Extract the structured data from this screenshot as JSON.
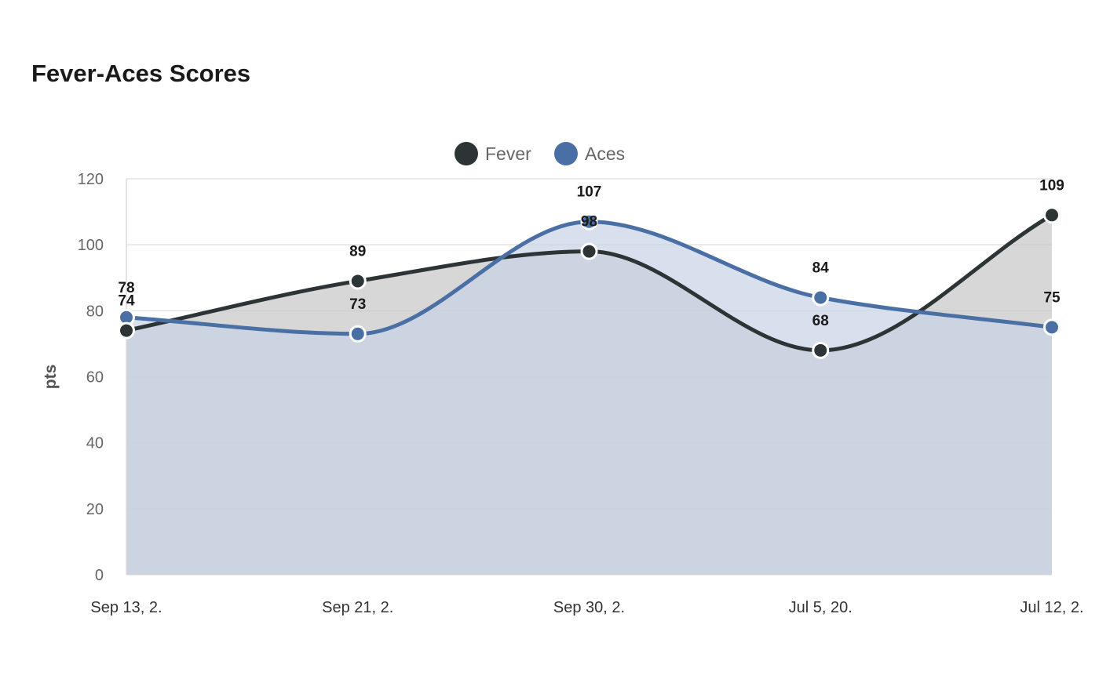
{
  "chart_data": {
    "type": "area",
    "title": "Fever-Aces Scores",
    "ylabel": "pts",
    "xlabel": "",
    "ylim": [
      0,
      120
    ],
    "yticks": [
      0,
      20,
      40,
      60,
      80,
      100,
      120
    ],
    "grid": true,
    "legend_position": "top-center",
    "categories": [
      "Sep 13, 2.",
      "Sep 21, 2.",
      "Sep 30, 2.",
      "Jul 5, 20.",
      "Jul 12, 2."
    ],
    "series": [
      {
        "name": "Fever",
        "values": [
          74,
          89,
          98,
          68,
          109
        ],
        "color": "#2d3436",
        "fill": "#c6c6c6"
      },
      {
        "name": "Aces",
        "values": [
          78,
          73,
          107,
          84,
          75
        ],
        "color": "#4a6fa5",
        "fill": "#c9d3e6"
      }
    ]
  }
}
